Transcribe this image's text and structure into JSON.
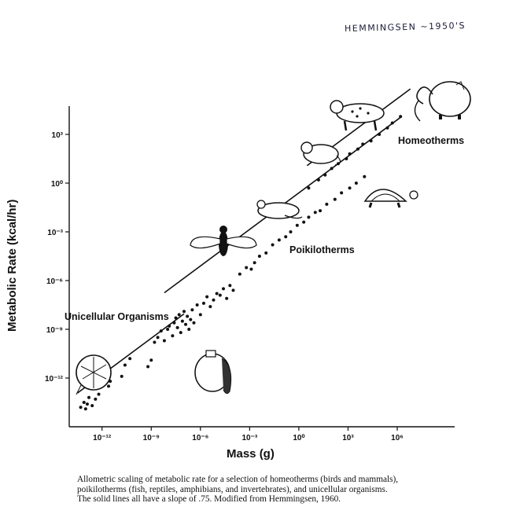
{
  "handwritten_note": "HEMMINGSEN ~1950'S",
  "caption": [
    "Allometric scaling of metabolic rate for a selection of homeotherms (birds and mammals),",
    "poikilotherms (fish, reptiles, amphibians, and invertebrates), and unicellular organisms.",
    "The solid lines all have a slope of .75. Modified from Hemmingsen, 1960."
  ],
  "chart_data": {
    "type": "scatter",
    "xlabel": "Mass (g)",
    "ylabel": "Metabolic Rate (kcal/hr)",
    "x_scale": "log",
    "y_scale": "log",
    "xlim_log10": [
      -14,
      9.5
    ],
    "ylim_log10": [
      -15,
      4.5
    ],
    "x_ticks": [
      {
        "exp": -12,
        "label": "10⁻¹²"
      },
      {
        "exp": -9,
        "label": "10⁻⁹"
      },
      {
        "exp": -6,
        "label": "10⁻⁶"
      },
      {
        "exp": -3,
        "label": "10⁻³"
      },
      {
        "exp": 0,
        "label": "10⁰"
      },
      {
        "exp": 3,
        "label": "10³"
      },
      {
        "exp": 6,
        "label": "10⁶"
      }
    ],
    "y_ticks": [
      {
        "exp": 3,
        "label": "10³"
      },
      {
        "exp": 0,
        "label": "10⁰"
      },
      {
        "exp": -3,
        "label": "10⁻³"
      },
      {
        "exp": -6,
        "label": "10⁻⁶"
      },
      {
        "exp": -9,
        "label": "10⁻⁹"
      },
      {
        "exp": -12,
        "label": "10⁻¹²"
      }
    ],
    "annotations": [
      "Homeotherms",
      "Poikilotherms",
      "Unicellular Organisms"
    ],
    "fit_lines": [
      {
        "slope": 0.75,
        "x_log_range": [
          -8.2,
          6.2
        ],
        "y_log_at_x0": -0.6
      },
      {
        "slope": 0.75,
        "x_log_range": [
          0.5,
          6.8
        ],
        "y_log_at_x0": 0.7
      },
      {
        "slope": 0.75,
        "x_log_range": [
          -13.5,
          -7.0
        ],
        "y_log_at_x0": -2.8
      }
    ],
    "series": [
      {
        "points": [
          [
            -13.3,
            -13.8
          ],
          [
            -13.1,
            -13.5
          ],
          [
            -13.0,
            -13.9
          ],
          [
            -12.8,
            -13.2
          ],
          [
            -12.9,
            -13.6
          ],
          [
            -12.6,
            -13.7
          ],
          [
            -12.4,
            -13.3
          ],
          [
            -12.5,
            -12.1
          ],
          [
            -12.2,
            -13.0
          ],
          [
            -11.6,
            -12.5
          ],
          [
            -11.5,
            -12.2
          ],
          [
            -10.8,
            -11.9
          ],
          [
            -10.6,
            -11.2
          ],
          [
            -10.3,
            -10.8
          ],
          [
            -9.2,
            -11.3
          ],
          [
            -9.0,
            -10.9
          ],
          [
            -8.8,
            -9.8
          ],
          [
            -8.6,
            -9.5
          ],
          [
            -8.4,
            -9.1
          ],
          [
            -8.2,
            -9.7
          ],
          [
            -8.0,
            -9.0
          ],
          [
            -7.9,
            -8.8
          ],
          [
            -7.7,
            -9.4
          ],
          [
            -7.6,
            -8.6
          ],
          [
            -7.5,
            -8.3
          ],
          [
            -7.4,
            -8.9
          ],
          [
            -7.3,
            -8.1
          ],
          [
            -7.2,
            -9.2
          ],
          [
            -7.1,
            -8.5
          ],
          [
            -7.0,
            -7.9
          ],
          [
            -6.9,
            -8.7
          ],
          [
            -6.8,
            -8.2
          ],
          [
            -6.7,
            -9.0
          ],
          [
            -6.6,
            -8.4
          ],
          [
            -6.5,
            -7.8
          ],
          [
            -6.4,
            -8.6
          ],
          [
            -6.2,
            -7.5
          ],
          [
            -6.0,
            -8.1
          ],
          [
            -5.8,
            -7.4
          ],
          [
            -5.6,
            -7.0
          ],
          [
            -5.4,
            -7.6
          ],
          [
            -5.2,
            -7.2
          ],
          [
            -5.0,
            -6.8
          ],
          [
            -4.8,
            -6.9
          ],
          [
            -4.6,
            -6.5
          ],
          [
            -4.4,
            -7.1
          ],
          [
            -4.2,
            -6.3
          ],
          [
            -4.0,
            -6.6
          ],
          [
            -3.6,
            -5.6
          ],
          [
            -3.2,
            -5.2
          ],
          [
            -2.9,
            -5.3
          ],
          [
            -2.7,
            -4.9
          ],
          [
            -2.4,
            -4.5
          ],
          [
            -2.0,
            -4.3
          ],
          [
            -1.6,
            -3.8
          ],
          [
            -1.2,
            -3.5
          ],
          [
            -0.8,
            -3.3
          ],
          [
            -0.5,
            -3.0
          ],
          [
            -0.1,
            -2.6
          ],
          [
            0.3,
            -2.4
          ],
          [
            0.6,
            -2.1
          ],
          [
            1.0,
            -1.8
          ],
          [
            1.3,
            -1.7
          ],
          [
            1.7,
            -1.3
          ],
          [
            2.2,
            -1.0
          ],
          [
            2.6,
            -0.6
          ],
          [
            3.1,
            -0.3
          ],
          [
            3.5,
            0.0
          ],
          [
            4.0,
            0.4
          ],
          [
            0.6,
            -0.3
          ],
          [
            1.2,
            0.2
          ],
          [
            1.6,
            0.5
          ],
          [
            2.0,
            0.9
          ],
          [
            2.4,
            1.2
          ],
          [
            2.9,
            1.5
          ],
          [
            3.1,
            1.8
          ],
          [
            3.6,
            2.1
          ],
          [
            3.9,
            2.4
          ],
          [
            4.4,
            2.6
          ],
          [
            4.9,
            3.0
          ],
          [
            5.4,
            3.4
          ],
          [
            5.7,
            3.7
          ],
          [
            6.2,
            4.1
          ]
        ]
      }
    ]
  }
}
